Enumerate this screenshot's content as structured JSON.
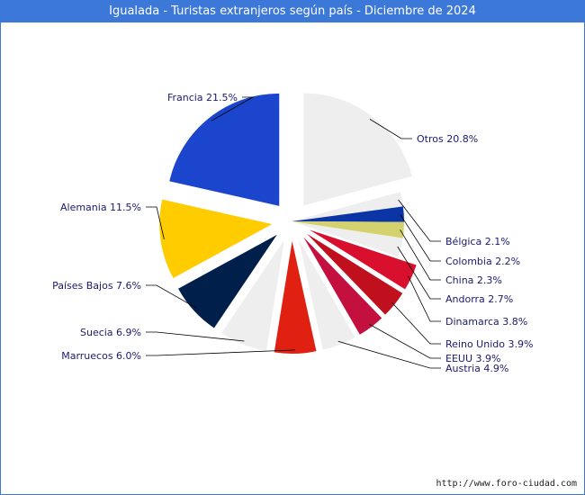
{
  "page": {
    "title": "Igualada - Turistas extranjeros según país - Diciembre de 2024",
    "footer_url": "http://www.foro-ciudad.com"
  },
  "colors": {
    "titlebar": "#3b78d8",
    "label_text": "#1a1a6e",
    "leader": "#000000"
  },
  "chart_data": {
    "type": "pie",
    "title": "Igualada - Turistas extranjeros según país - Diciembre de 2024",
    "unit": "%",
    "slices": [
      {
        "name": "Otros",
        "value": 20.8,
        "label": "Otros 20.8%",
        "color": "#eeeeee",
        "exploded": true
      },
      {
        "name": "Bélgica",
        "value": 2.1,
        "label": "Bélgica 2.1%",
        "color": "#eeeeee",
        "exploded": false
      },
      {
        "name": "Colombia",
        "value": 2.2,
        "label": "Colombia 2.2%",
        "color": "#0b35a4",
        "exploded": false
      },
      {
        "name": "China",
        "value": 2.3,
        "label": "China 2.3%",
        "color": "#d4d26e",
        "exploded": false
      },
      {
        "name": "Andorra",
        "value": 2.7,
        "label": "Andorra 2.7%",
        "color": "#eeeeee",
        "exploded": false
      },
      {
        "name": "Dinamarca",
        "value": 3.8,
        "label": "Dinamarca 3.8%",
        "color": "#d8102e",
        "exploded": true
      },
      {
        "name": "Reino Unido",
        "value": 3.9,
        "label": "Reino Unido 3.9%",
        "color": "#c0101e",
        "exploded": true
      },
      {
        "name": "EEUU",
        "value": 3.9,
        "label": "EEUU 3.9%",
        "color": "#c4103e",
        "exploded": true
      },
      {
        "name": "Austria",
        "value": 4.9,
        "label": "Austria 4.9%",
        "color": "#eeeeee",
        "exploded": true
      },
      {
        "name": "Marruecos",
        "value": 6.0,
        "label": "Marruecos 6.0%",
        "color": "#e02010",
        "exploded": true
      },
      {
        "name": "Suecia",
        "value": 6.9,
        "label": "Suecia 6.9%",
        "color": "#eeeeee",
        "exploded": true
      },
      {
        "name": "Países Bajos",
        "value": 7.6,
        "label": "Países Bajos 7.6%",
        "color": "#001f4a",
        "exploded": true
      },
      {
        "name": "Alemania",
        "value": 11.5,
        "label": "Alemania 11.5%",
        "color": "#ffcc00",
        "exploded": true
      },
      {
        "name": "Francia",
        "value": 21.5,
        "label": "Francia 21.5%",
        "color": "#1a45cc",
        "exploded": true
      }
    ]
  }
}
